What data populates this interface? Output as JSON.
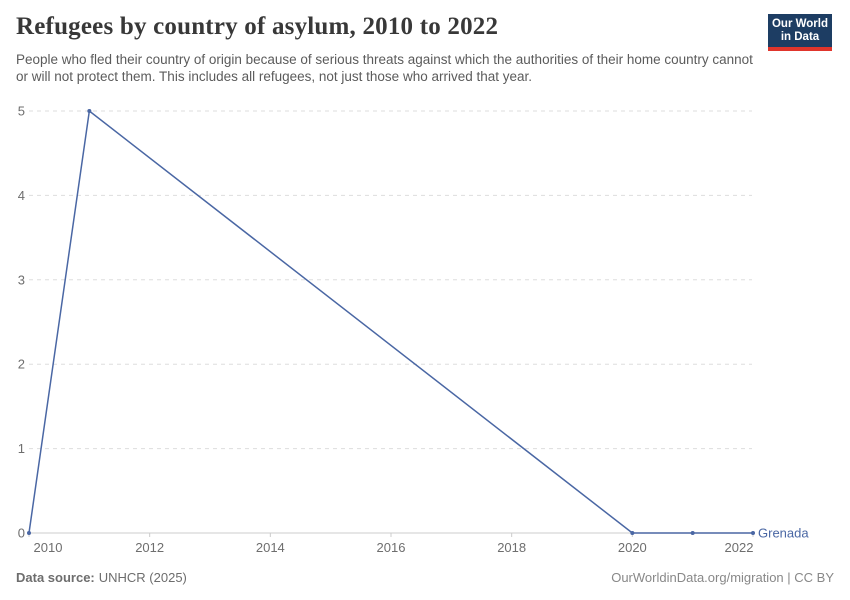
{
  "header": {
    "title": "Refugees by country of asylum, 2010 to 2022",
    "subtitle": "People who fled their country of origin because of serious threats against which the authorities of their home country cannot or will not protect them. This includes all refugees, not just those who arrived that year.",
    "logo": {
      "line1": "Our World",
      "line2": "in Data"
    }
  },
  "footer": {
    "source_label": "Data source:",
    "source_value": "UNHCR (2025)",
    "attribution": "OurWorldinData.org/migration | CC BY"
  },
  "colors": {
    "line": "#4a67a4",
    "entity_label": "#4a67a4",
    "grid": "#dddddd",
    "axis": "#cccccc",
    "tick_text": "#6e6e6e",
    "title": "#383838",
    "subtitle": "#5b5b5b",
    "logo_bg": "#1d3d63",
    "logo_stripe": "#e0352c"
  },
  "chart_data": {
    "type": "line",
    "title": "Refugees by country of asylum, 2010 to 2022",
    "xlabel": "",
    "ylabel": "",
    "xlim": [
      2010,
      2022
    ],
    "ylim": [
      0,
      5
    ],
    "xticks": [
      2010,
      2012,
      2014,
      2016,
      2018,
      2020,
      2022
    ],
    "xticklabels": [
      "2010",
      "2012",
      "2014",
      "2016",
      "2018",
      "2020",
      "2022"
    ],
    "yticks": [
      0,
      1,
      2,
      3,
      4,
      5
    ],
    "yticklabels": [
      "0",
      "1",
      "2",
      "3",
      "4",
      "5"
    ],
    "grid": "horizontal-dashed",
    "legend_position": "end-of-line",
    "series": [
      {
        "name": "Grenada",
        "points": [
          [
            2010,
            0
          ],
          [
            2011,
            5
          ],
          [
            2020,
            0
          ],
          [
            2021,
            0
          ],
          [
            2022,
            0
          ]
        ]
      }
    ]
  }
}
